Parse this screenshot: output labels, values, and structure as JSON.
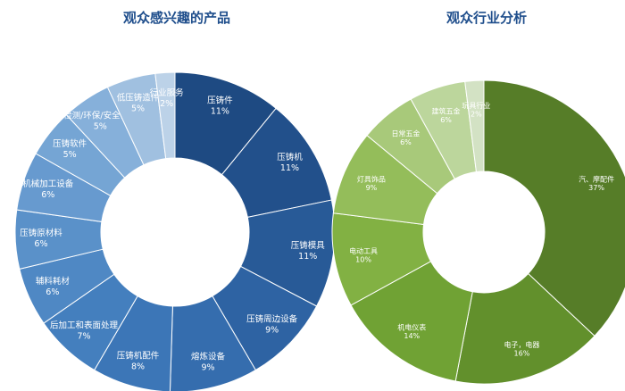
{
  "chart_data": [
    {
      "type": "pie",
      "title": "观众感兴趣的产品",
      "unit": "%",
      "slices": [
        {
          "label": "压铸件",
          "value": 11,
          "value_text": "11%",
          "color": "#1e4a82"
        },
        {
          "label": "压铸机",
          "value": 11,
          "value_text": "11%",
          "color": "#22508b"
        },
        {
          "label": "压铸模具",
          "value": 11,
          "value_text": "11%",
          "color": "#285a97"
        },
        {
          "label": "压铸周边设备",
          "value": 9,
          "value_text": "9%",
          "color": "#2e63a3"
        },
        {
          "label": "熔炼设备",
          "value": 9,
          "value_text": "9%",
          "color": "#356dae"
        },
        {
          "label": "压铸机配件",
          "value": 8,
          "value_text": "8%",
          "color": "#3c76b7"
        },
        {
          "label": "后加工和表面处理",
          "value": 7,
          "value_text": "7%",
          "color": "#447fbe"
        },
        {
          "label": "辅料耗材",
          "value": 6,
          "value_text": "6%",
          "color": "#4f88c4"
        },
        {
          "label": "压铸原材料",
          "value": 6,
          "value_text": "6%",
          "color": "#5a91c9"
        },
        {
          "label": "机械加工设备",
          "value": 6,
          "value_text": "6%",
          "color": "#679acf"
        },
        {
          "label": "压铸软件",
          "value": 5,
          "value_text": "5%",
          "color": "#75a5d4"
        },
        {
          "label": "检测/环保/安全设备",
          "value": 5,
          "value_text": "5%",
          "color": "#86b0da"
        },
        {
          "label": "低压铸造件",
          "value": 5,
          "value_text": "5%",
          "color": "#a0c0e0"
        },
        {
          "label": "行业服务",
          "value": 2,
          "value_text": "2%",
          "color": "#bcd2e8"
        }
      ]
    },
    {
      "type": "pie",
      "title": "观众行业分析",
      "unit": "%",
      "slices": [
        {
          "label": "汽、摩配件",
          "value": 37,
          "value_text": "37%",
          "color": "#567d28"
        },
        {
          "label": "电子，电器",
          "value": 16,
          "value_text": "16%",
          "color": "#62902c"
        },
        {
          "label": "机电仪表",
          "value": 14,
          "value_text": "14%",
          "color": "#70a234"
        },
        {
          "label": "电动工具",
          "value": 10,
          "value_text": "10%",
          "color": "#82b143"
        },
        {
          "label": "灯具饰品",
          "value": 9,
          "value_text": "9%",
          "color": "#94bd5a"
        },
        {
          "label": "日常五金",
          "value": 6,
          "value_text": "6%",
          "color": "#a8c97a"
        },
        {
          "label": "建筑五金",
          "value": 6,
          "value_text": "6%",
          "color": "#bcd69c"
        },
        {
          "label": "玩具行业",
          "value": 2,
          "value_text": "2%",
          "color": "#d3e2c4"
        }
      ]
    }
  ]
}
